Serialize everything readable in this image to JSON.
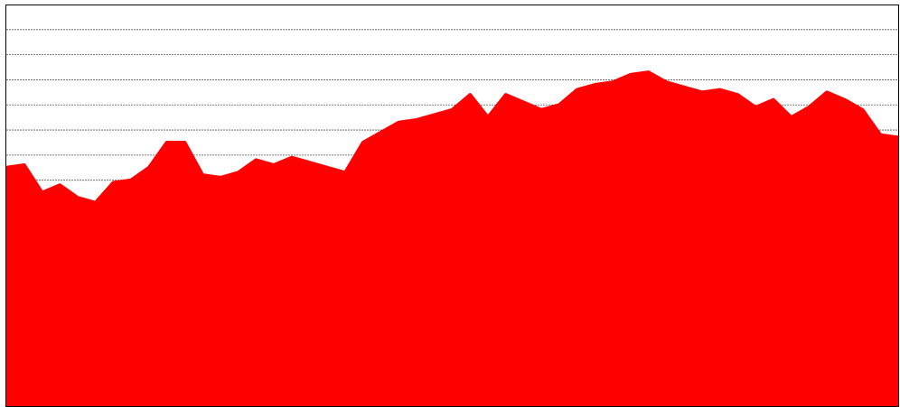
{
  "chart_data": {
    "type": "area",
    "title": "",
    "xlabel": "",
    "ylabel": "",
    "x": [
      0,
      2,
      4,
      6,
      8,
      10,
      12,
      14,
      16,
      18,
      20,
      22,
      24,
      26,
      28,
      30,
      32,
      34,
      36,
      38,
      40,
      42,
      44,
      46,
      48,
      50,
      52,
      54,
      56,
      58,
      60,
      62,
      64,
      66,
      68,
      70,
      72,
      74,
      76,
      78,
      80,
      82,
      84,
      86,
      88,
      90,
      92,
      94,
      96,
      98,
      100
    ],
    "ylim": [
      0,
      16
    ],
    "grid": true,
    "legend": "none",
    "colors": {
      "series": "#ff0000",
      "background": "#ffffff",
      "grid": "#555555",
      "frame": "#000000"
    },
    "series": [
      {
        "values": [
          9.5,
          9.6,
          8.5,
          8.8,
          8.3,
          8.1,
          8.9,
          9.0,
          9.5,
          10.5,
          10.5,
          9.2,
          9.1,
          9.3,
          9.8,
          9.6,
          9.9,
          9.7,
          9.5,
          9.3,
          10.5,
          10.9,
          11.3,
          11.4,
          11.6,
          11.8,
          12.4,
          11.5,
          12.4,
          12.1,
          11.8,
          12.0,
          12.6,
          12.8,
          12.9,
          13.2,
          13.3,
          12.9,
          12.7,
          12.5,
          12.6,
          12.4,
          11.9,
          12.2,
          11.5,
          11.9,
          12.5,
          12.2,
          11.8,
          10.8,
          10.7
        ]
      }
    ]
  }
}
